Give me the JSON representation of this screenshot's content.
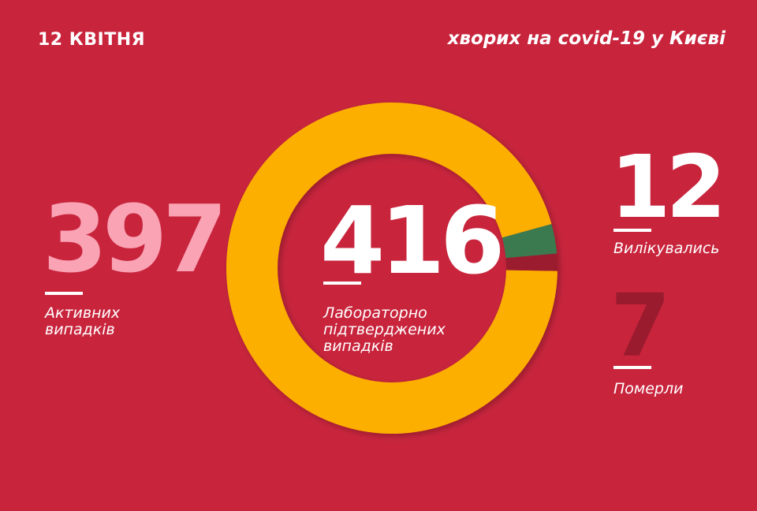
{
  "header": {
    "date": "12 КВІТНЯ",
    "title": "хворих на covid-19 у Києві"
  },
  "colors": {
    "background": "#c8253d",
    "active": "#fdaf00",
    "recovered": "#3a7a50",
    "deceased": "#9b1b2e",
    "active_text": "#f9a3b4"
  },
  "stats": {
    "active": {
      "value": "397",
      "label_line1": "Активних",
      "label_line2": "випадків"
    },
    "total": {
      "value": "416",
      "label_line1": "Лабораторно",
      "label_line2": "підтверджених",
      "label_line3": "випадків"
    },
    "recovered": {
      "value": "12",
      "label": "Вилікувались"
    },
    "deceased": {
      "value": "7",
      "label": "Померли"
    }
  },
  "chart_data": {
    "type": "pie",
    "donut": true,
    "categories": [
      "Активних випадків",
      "Вилікувались",
      "Померли"
    ],
    "values": [
      397,
      12,
      7
    ],
    "colors": [
      "#fdaf00",
      "#3a7a50",
      "#9b1b2e"
    ],
    "total": 416
  }
}
